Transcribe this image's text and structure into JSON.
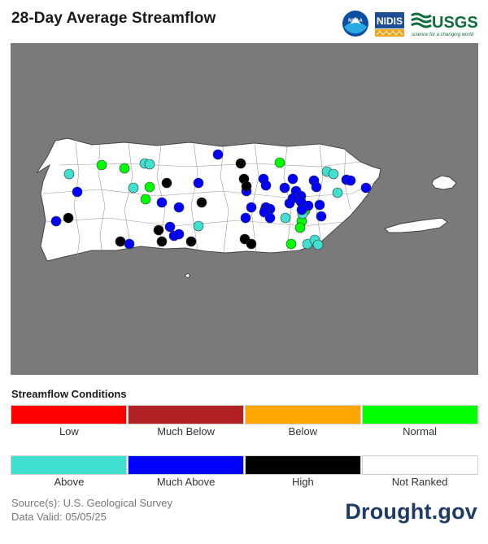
{
  "header": {
    "title": "28-Day Average Streamflow",
    "logos": {
      "noaa": "NOAA",
      "nidis": "NIDIS",
      "usgs": "USGS",
      "usgs_tagline": "science for a changing world"
    }
  },
  "legend": {
    "title": "Streamflow Conditions",
    "categories": [
      {
        "label": "Low",
        "color": "#ff0000"
      },
      {
        "label": "Much Below",
        "color": "#b22222"
      },
      {
        "label": "Below",
        "color": "#ffa500"
      },
      {
        "label": "Normal",
        "color": "#00ff00"
      },
      {
        "label": "Above",
        "color": "#40e0d0"
      },
      {
        "label": "Much Above",
        "color": "#0000ff"
      },
      {
        "label": "High",
        "color": "#000000"
      },
      {
        "label": "Not Ranked",
        "color": "#ffffff"
      }
    ]
  },
  "map": {
    "region": "Puerto Rico",
    "background_color": "#7a7a7a",
    "land_color": "#ffffff",
    "gauge_counts": {
      "Normal": 9,
      "Above": 13,
      "Much Above": 34,
      "High": 12
    }
  },
  "footer": {
    "source": "Source(s): U.S. Geological Survey",
    "valid": "Data Valid: 05/05/25",
    "brand": "Drought.gov"
  }
}
